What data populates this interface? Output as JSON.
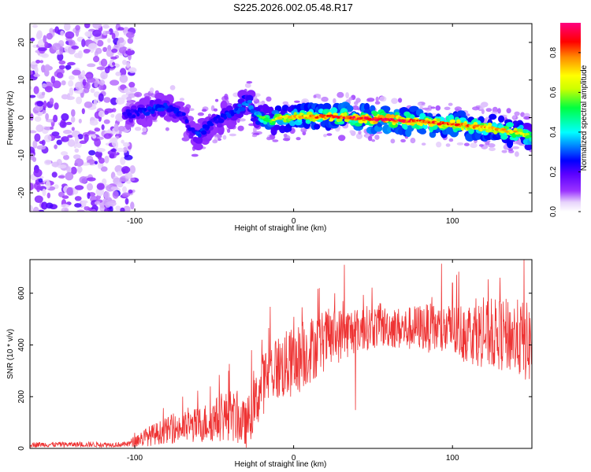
{
  "title": "S225.2026.002.05.48.R17",
  "chart_data": [
    {
      "type": "heatmap",
      "name": "spectrogram",
      "xlabel": "Height of straight line (km)",
      "ylabel": "Frequency (Hz)",
      "xlim": [
        -166,
        150
      ],
      "ylim": [
        -25,
        25
      ],
      "xticks": [
        -100,
        0,
        100
      ],
      "xtick_labels": [
        "-100",
        "0",
        "100"
      ],
      "yticks": [
        -20,
        -10,
        0,
        10,
        20
      ],
      "ytick_labels": [
        "-20",
        "-10",
        "0",
        "10",
        "20"
      ],
      "colorbar": {
        "label": "Normalized spectral amplitude",
        "range": [
          0,
          0.95
        ],
        "ticks": [
          0.0,
          0.2,
          0.4,
          0.6,
          0.8
        ],
        "tick_labels": [
          "0.0",
          "0.2",
          "0.4",
          "0.6",
          "0.8"
        ]
      },
      "ridge": {
        "x": [
          -100,
          -90,
          -80,
          -70,
          -65,
          -60,
          -55,
          -50,
          -45,
          -40,
          -35,
          -30,
          -28,
          -25,
          -20,
          -15,
          -10,
          0,
          20,
          40,
          60,
          80,
          100,
          120,
          140,
          150
        ],
        "frequency": [
          1,
          2,
          3,
          1,
          -3,
          -5,
          -3,
          -1,
          0,
          1,
          2,
          4,
          5,
          1,
          0,
          -1,
          0,
          0.2,
          0.3,
          -0.2,
          -0.5,
          -1,
          -1.8,
          -2.5,
          -4,
          -5
        ],
        "amplitude": [
          0.3,
          0.35,
          0.35,
          0.3,
          0.3,
          0.35,
          0.35,
          0.3,
          0.35,
          0.35,
          0.4,
          0.45,
          0.4,
          0.4,
          0.55,
          0.6,
          0.7,
          0.75,
          0.85,
          0.9,
          0.95,
          0.85,
          0.85,
          0.8,
          0.75,
          0.6
        ]
      },
      "noise_region_x": [
        -166,
        -100
      ]
    },
    {
      "type": "line",
      "name": "snr",
      "xlabel": "Height of straight line (km)",
      "ylabel": "SNR (10 * v/v)",
      "xlim": [
        -166,
        150
      ],
      "ylim": [
        0,
        730
      ],
      "xticks": [
        -100,
        0,
        100
      ],
      "xtick_labels": [
        "-100",
        "0",
        "100"
      ],
      "yticks": [
        0,
        200,
        400,
        600
      ],
      "ytick_labels": [
        "0",
        "200",
        "400",
        "600"
      ],
      "color": "#ee3333",
      "trend": {
        "x": [
          -166,
          -105,
          -95,
          -80,
          -60,
          -50,
          -40,
          -30,
          -25,
          -20,
          -15,
          -10,
          0,
          10,
          20,
          30,
          40,
          50,
          60,
          70,
          80,
          90,
          100,
          110,
          120,
          130,
          140,
          150
        ],
        "y": [
          15,
          15,
          40,
          70,
          90,
          110,
          130,
          90,
          160,
          240,
          300,
          310,
          330,
          380,
          420,
          440,
          460,
          470,
          470,
          460,
          470,
          460,
          450,
          450,
          440,
          440,
          430,
          400
        ]
      },
      "spread": {
        "x": [
          -166,
          -105,
          -95,
          -80,
          -60,
          -40,
          -30,
          -20,
          -10,
          0,
          20,
          40,
          60,
          80,
          100,
          120,
          150
        ],
        "y": [
          10,
          10,
          35,
          50,
          70,
          100,
          90,
          120,
          130,
          140,
          120,
          90,
          80,
          90,
          110,
          130,
          160
        ]
      },
      "spikes": [
        {
          "x": 32,
          "y": 710
        },
        {
          "x": 39,
          "y": 148
        },
        {
          "x": 145,
          "y": 730
        },
        {
          "x": 130,
          "y": 660
        },
        {
          "x": 100,
          "y": 640
        },
        {
          "x": -41,
          "y": 300
        },
        {
          "x": -20,
          "y": 420
        }
      ]
    }
  ]
}
